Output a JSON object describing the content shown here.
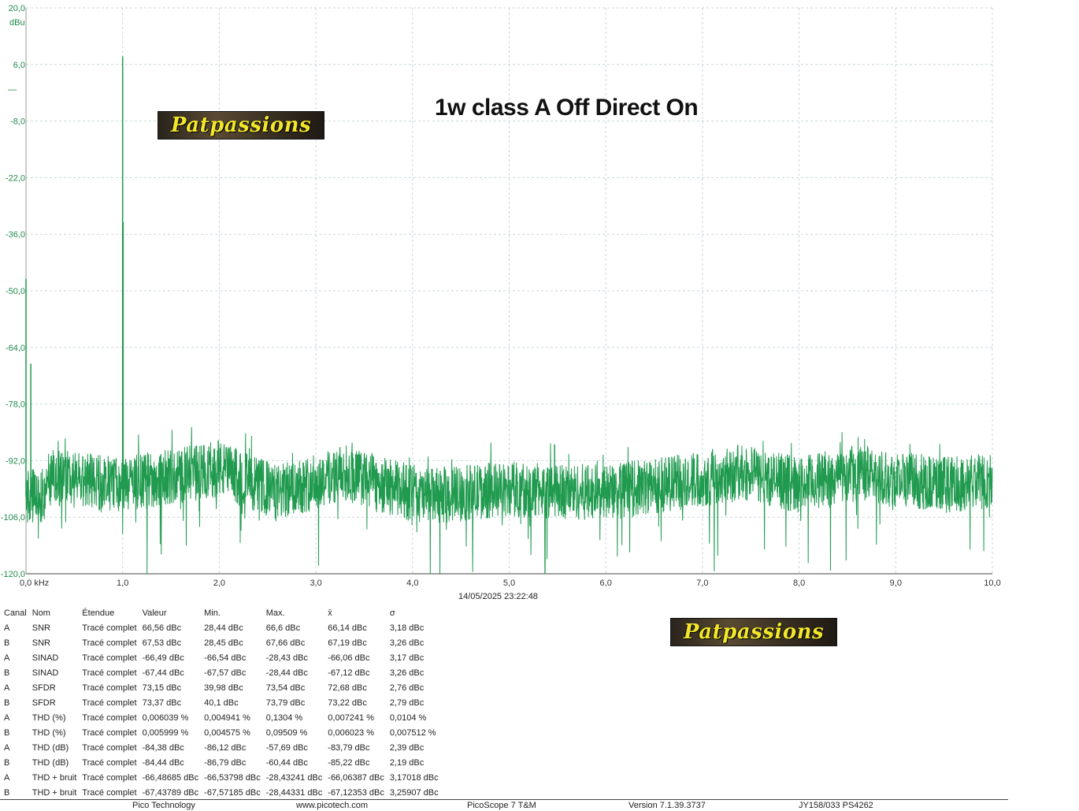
{
  "chart_data": {
    "type": "line",
    "title": "",
    "annotation": "1w class A Off Direct On",
    "xlabel": "",
    "ylabel": "dBu",
    "xlim": [
      0,
      10
    ],
    "ylim": [
      -120,
      20
    ],
    "grid": true,
    "x_unit": "kHz",
    "xticks": [
      "0,0 kHz",
      "1,0",
      "2,0",
      "3,0",
      "4,0",
      "5,0",
      "6,0",
      "7,0",
      "8,0",
      "9,0",
      "10,0"
    ],
    "yticks": [
      "20,0",
      "6,0",
      "-8,0",
      "-22,0",
      "-36,0",
      "-50,0",
      "-64,0",
      "-78,0",
      "-92,0",
      "-106,0",
      "-120,0"
    ],
    "series": [
      {
        "color": "#1f9a4e",
        "noise_floor_dbu": -101,
        "noise_bands": [
          {
            "x": 0.2,
            "y": -96
          },
          {
            "x": 1.0,
            "y": -98
          },
          {
            "x": 2.0,
            "y": -94
          },
          {
            "x": 2.6,
            "y": -100
          },
          {
            "x": 3.3,
            "y": -95
          },
          {
            "x": 4.1,
            "y": -101
          },
          {
            "x": 5.0,
            "y": -99
          },
          {
            "x": 6.0,
            "y": -100
          },
          {
            "x": 7.4,
            "y": -95
          },
          {
            "x": 8.0,
            "y": -98
          },
          {
            "x": 8.6,
            "y": -95
          },
          {
            "x": 9.5,
            "y": -98
          },
          {
            "x": 10.0,
            "y": -97
          }
        ],
        "peaks": [
          {
            "x": 0.0,
            "y": -47
          },
          {
            "x": 0.05,
            "y": -68
          },
          {
            "x": 1.0,
            "y": 8
          },
          {
            "x": 1.005,
            "y": -33
          },
          {
            "x": 1.99,
            "y": -87
          },
          {
            "x": 5.47,
            "y": -88
          }
        ]
      }
    ]
  },
  "ylabel_unit": "dBu",
  "legend_dash": "—",
  "logo_text": "Patpassions",
  "timestamp": "14/05/2025 23:22:48",
  "table": {
    "headers": [
      "Canal",
      "Nom",
      "Étendue",
      "Valeur",
      "Min.",
      "Max.",
      "x̄",
      "σ"
    ],
    "rows": [
      [
        "A",
        "SNR",
        "Tracé complet",
        "66,56 dBc",
        "28,44 dBc",
        "66,6 dBc",
        "66,14 dBc",
        "3,18 dBc"
      ],
      [
        "B",
        "SNR",
        "Tracé complet",
        "67,53 dBc",
        "28,45 dBc",
        "67,66 dBc",
        "67,19 dBc",
        "3,26 dBc"
      ],
      [
        "A",
        "SINAD",
        "Tracé complet",
        "-66,49 dBc",
        "-66,54 dBc",
        "-28,43 dBc",
        "-66,06 dBc",
        "3,17 dBc"
      ],
      [
        "B",
        "SINAD",
        "Tracé complet",
        "-67,44 dBc",
        "-67,57 dBc",
        "-28,44 dBc",
        "-67,12 dBc",
        "3,26 dBc"
      ],
      [
        "A",
        "SFDR",
        "Tracé complet",
        "73,15 dBc",
        "39,98 dBc",
        "73,54 dBc",
        "72,68 dBc",
        "2,76 dBc"
      ],
      [
        "B",
        "SFDR",
        "Tracé complet",
        "73,37 dBc",
        "40,1 dBc",
        "73,79 dBc",
        "73,22 dBc",
        "2,79 dBc"
      ],
      [
        "A",
        "THD (%)",
        "Tracé complet",
        "0,006039 %",
        "0,004941 %",
        "0,1304 %",
        "0,007241 %",
        "0,0104 %"
      ],
      [
        "B",
        "THD (%)",
        "Tracé complet",
        "0,005999 %",
        "0,004575 %",
        "0,09509 %",
        "0,006023 %",
        "0,007512 %"
      ],
      [
        "A",
        "THD (dB)",
        "Tracé complet",
        "-84,38 dBc",
        "-86,12 dBc",
        "-57,69 dBc",
        "-83,79 dBc",
        "2,39 dBc"
      ],
      [
        "B",
        "THD (dB)",
        "Tracé complet",
        "-84,44 dBc",
        "-86,79 dBc",
        "-60,44 dBc",
        "-85,22 dBc",
        "2,19 dBc"
      ],
      [
        "A",
        "THD + bruit",
        "Tracé complet",
        "-66,48685 dBc",
        "-66,53798 dBc",
        "-28,43241 dBc",
        "-66,06387 dBc",
        "3,17018 dBc"
      ],
      [
        "B",
        "THD + bruit",
        "Tracé complet",
        "-67,43789 dBc",
        "-67,57185 dBc",
        "-28,44331 dBc",
        "-67,12353 dBc",
        "3,25907 dBc"
      ]
    ]
  },
  "footer": [
    "Pico Technology",
    "www.picotech.com",
    "PicoScope 7 T&M",
    "Version 7.1.39.3737",
    "JY158/033 PS4262"
  ]
}
